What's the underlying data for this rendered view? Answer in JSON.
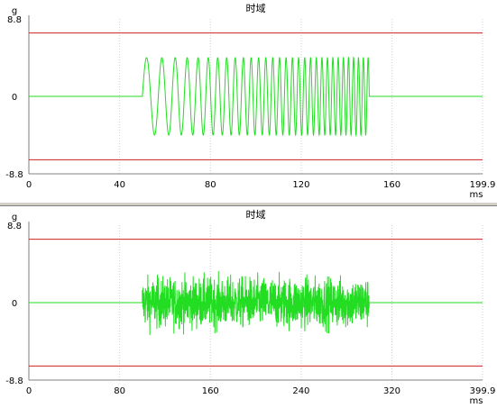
{
  "colors": {
    "signal": "#22dd22",
    "limit": "#cc2222",
    "axis": "#808080",
    "grid": "#d0d0d0",
    "background": "#ffffff",
    "divider": "#d4d0c8"
  },
  "chart_data": [
    {
      "type": "line",
      "title": "时域",
      "ylabel": "g",
      "xunit": "ms",
      "xlim": [
        0,
        199.9
      ],
      "ylim": [
        -8.8,
        8.8
      ],
      "xticks": [
        0,
        40,
        80,
        120,
        160,
        199.9
      ],
      "xtick_labels": [
        "0",
        "40",
        "80",
        "120",
        "160",
        "199.9"
      ],
      "ytick_labels": [
        "8.8",
        "0",
        "-8.8"
      ],
      "grid": true,
      "limit_lines": [
        7.2,
        -7.2
      ],
      "series": [
        {
          "signal": "sine-sweep",
          "start_ms": 50.0,
          "end_ms": 150.0,
          "amplitude": 4.4,
          "start_freq_khz": 0.13,
          "end_freq_khz": 0.48
        }
      ]
    },
    {
      "type": "line",
      "title": "时域",
      "ylabel": "g",
      "xunit": "ms",
      "xlim": [
        0,
        399.9
      ],
      "ylim": [
        -8.8,
        8.8
      ],
      "xticks": [
        0,
        80,
        160,
        240,
        320,
        399.9
      ],
      "xtick_labels": [
        "0",
        "80",
        "160",
        "240",
        "320",
        "399.9"
      ],
      "ytick_labels": [
        "8.8",
        "0",
        "-8.8"
      ],
      "grid": true,
      "limit_lines": [
        7.2,
        -7.2
      ],
      "series": [
        {
          "signal": "random",
          "start_ms": 100.0,
          "end_ms": 300.0,
          "peak": 4.6
        }
      ]
    }
  ]
}
